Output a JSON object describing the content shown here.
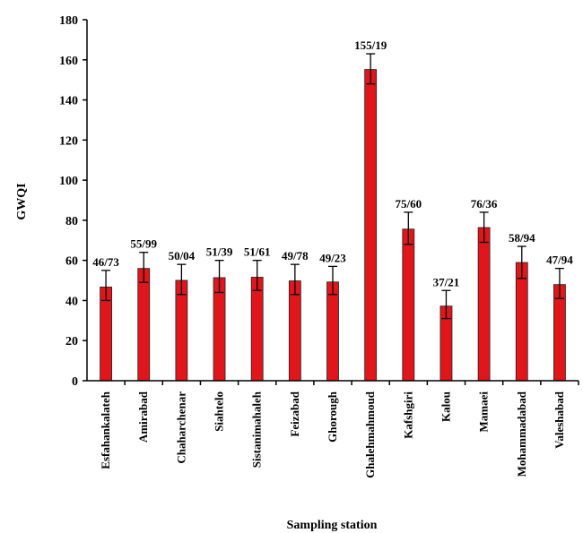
{
  "chart_data": {
    "type": "bar",
    "xlabel": "Sampling station",
    "ylabel": "GWQI",
    "ylim": [
      0,
      180
    ],
    "yticks": [
      0,
      20,
      40,
      60,
      80,
      100,
      120,
      140,
      160,
      180
    ],
    "bar_color": "#e0161b",
    "categories": [
      "Esfahankalateh",
      "Amirabad",
      "Chaharchenar",
      "Siahtelo",
      "Sistanimahaleh",
      "Feizabad",
      "Ghorough",
      "Ghalehmahmoud",
      "Kafshgiri",
      "Kalou",
      "Mamaei",
      "Mohammadabad",
      "Valeshabad"
    ],
    "values": [
      46.73,
      55.99,
      50.04,
      51.39,
      51.61,
      49.78,
      49.23,
      155.19,
      75.6,
      37.21,
      76.36,
      58.94,
      47.94
    ],
    "data_labels": [
      "46/73",
      "55/99",
      "50/04",
      "51/39",
      "51/61",
      "49/78",
      "49/23",
      "155/19",
      "75/60",
      "37/21",
      "76/36",
      "58/94",
      "47/94"
    ],
    "error_upper": [
      55,
      64,
      58,
      60,
      60,
      58,
      57,
      163,
      84,
      45,
      84,
      67,
      56
    ],
    "error_lower": [
      40,
      49,
      43,
      44,
      45,
      43,
      43,
      148,
      68,
      31,
      69,
      51,
      41
    ],
    "grid": false,
    "legend": "none"
  }
}
